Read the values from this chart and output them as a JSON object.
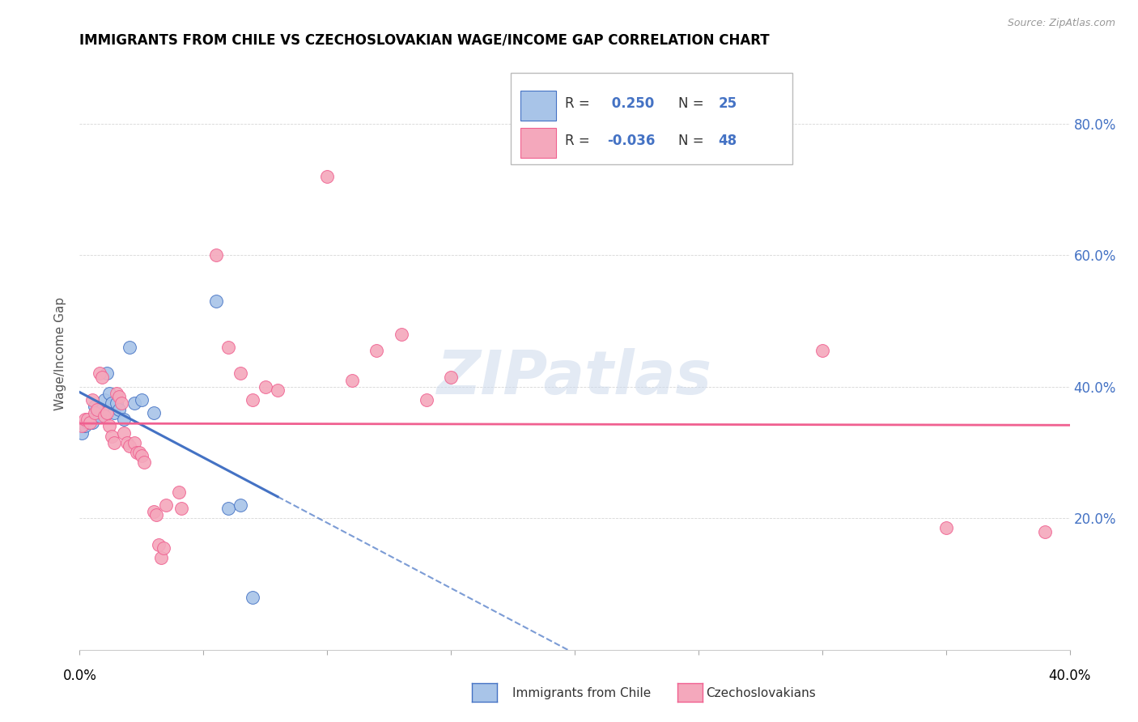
{
  "title": "IMMIGRANTS FROM CHILE VS CZECHOSLOVAKIAN WAGE/INCOME GAP CORRELATION CHART",
  "source": "Source: ZipAtlas.com",
  "ylabel": "Wage/Income Gap",
  "watermark": "ZIPatlas",
  "blue_color": "#a8c4e8",
  "pink_color": "#f4a8bc",
  "blue_line_color": "#4472C4",
  "pink_line_color": "#f06090",
  "legend_blue_r": " 0.250",
  "legend_blue_n": "25",
  "legend_pink_r": "-0.036",
  "legend_pink_n": "48",
  "blue_points": [
    [
      0.001,
      0.33
    ],
    [
      0.002,
      0.34
    ],
    [
      0.003,
      0.345
    ],
    [
      0.004,
      0.35
    ],
    [
      0.005,
      0.345
    ],
    [
      0.006,
      0.37
    ],
    [
      0.007,
      0.36
    ],
    [
      0.008,
      0.355
    ],
    [
      0.009,
      0.365
    ],
    [
      0.01,
      0.38
    ],
    [
      0.011,
      0.42
    ],
    [
      0.012,
      0.39
    ],
    [
      0.013,
      0.375
    ],
    [
      0.014,
      0.36
    ],
    [
      0.015,
      0.375
    ],
    [
      0.016,
      0.365
    ],
    [
      0.018,
      0.35
    ],
    [
      0.02,
      0.46
    ],
    [
      0.022,
      0.375
    ],
    [
      0.025,
      0.38
    ],
    [
      0.03,
      0.36
    ],
    [
      0.055,
      0.53
    ],
    [
      0.06,
      0.215
    ],
    [
      0.065,
      0.22
    ],
    [
      0.07,
      0.08
    ]
  ],
  "pink_points": [
    [
      0.001,
      0.34
    ],
    [
      0.002,
      0.35
    ],
    [
      0.003,
      0.35
    ],
    [
      0.004,
      0.345
    ],
    [
      0.005,
      0.38
    ],
    [
      0.006,
      0.36
    ],
    [
      0.007,
      0.365
    ],
    [
      0.008,
      0.42
    ],
    [
      0.009,
      0.415
    ],
    [
      0.01,
      0.355
    ],
    [
      0.011,
      0.36
    ],
    [
      0.012,
      0.34
    ],
    [
      0.013,
      0.325
    ],
    [
      0.014,
      0.315
    ],
    [
      0.015,
      0.39
    ],
    [
      0.016,
      0.385
    ],
    [
      0.017,
      0.375
    ],
    [
      0.018,
      0.33
    ],
    [
      0.019,
      0.315
    ],
    [
      0.02,
      0.31
    ],
    [
      0.022,
      0.315
    ],
    [
      0.023,
      0.3
    ],
    [
      0.024,
      0.3
    ],
    [
      0.025,
      0.295
    ],
    [
      0.026,
      0.285
    ],
    [
      0.03,
      0.21
    ],
    [
      0.031,
      0.205
    ],
    [
      0.032,
      0.16
    ],
    [
      0.033,
      0.14
    ],
    [
      0.034,
      0.155
    ],
    [
      0.035,
      0.22
    ],
    [
      0.04,
      0.24
    ],
    [
      0.041,
      0.215
    ],
    [
      0.055,
      0.6
    ],
    [
      0.06,
      0.46
    ],
    [
      0.065,
      0.42
    ],
    [
      0.07,
      0.38
    ],
    [
      0.075,
      0.4
    ],
    [
      0.08,
      0.395
    ],
    [
      0.1,
      0.72
    ],
    [
      0.11,
      0.41
    ],
    [
      0.12,
      0.455
    ],
    [
      0.13,
      0.48
    ],
    [
      0.14,
      0.38
    ],
    [
      0.15,
      0.415
    ],
    [
      0.3,
      0.455
    ],
    [
      0.35,
      0.185
    ],
    [
      0.39,
      0.18
    ]
  ],
  "xlim": [
    0.0,
    0.4
  ],
  "ylim": [
    0.0,
    0.9
  ],
  "ytick_vals": [
    0.2,
    0.4,
    0.6,
    0.8
  ],
  "ytick_labels": [
    "20.0%",
    "40.0%",
    "60.0%",
    "80.0%"
  ],
  "xtick_positions": [
    0.0,
    0.05,
    0.1,
    0.15,
    0.2,
    0.25,
    0.3,
    0.35,
    0.4
  ],
  "xtick_label_left": "0.0%",
  "xtick_label_right": "40.0%"
}
